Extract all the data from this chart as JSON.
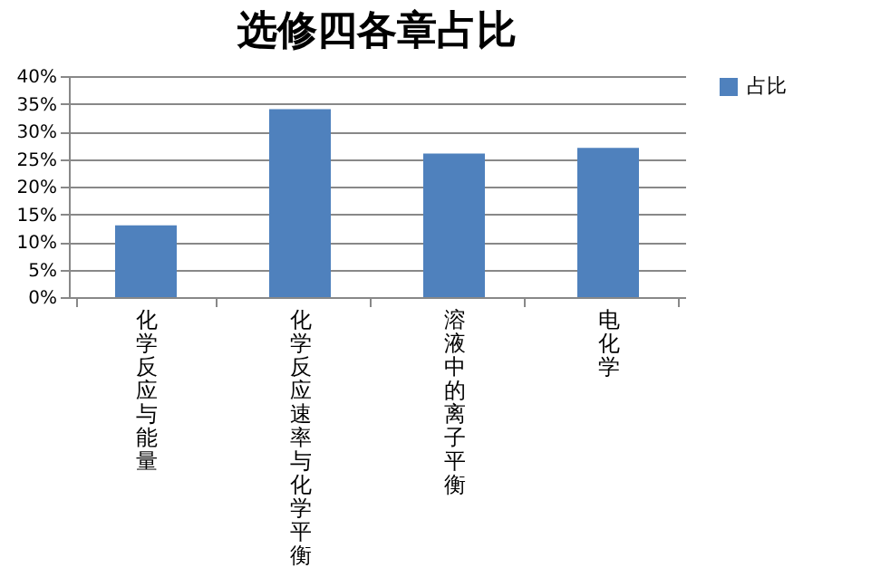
{
  "chart_data": {
    "type": "bar",
    "title": "选修四各章占比",
    "categories": [
      "化学反应与能量",
      "化学反应速率与化学平衡",
      "溶液中的离子平衡",
      "电化学"
    ],
    "series": [
      {
        "name": "占比",
        "color": "#4f81bd",
        "values": [
          13,
          34,
          26,
          27
        ]
      }
    ],
    "ylim": [
      0,
      40
    ],
    "yticks": [
      {
        "value": 0,
        "label": "0%"
      },
      {
        "value": 5,
        "label": "5%"
      },
      {
        "value": 10,
        "label": "10%"
      },
      {
        "value": 15,
        "label": "15%"
      },
      {
        "value": 20,
        "label": "20%"
      },
      {
        "value": 25,
        "label": "25%"
      },
      {
        "value": 30,
        "label": "30%"
      },
      {
        "value": 35,
        "label": "35%"
      },
      {
        "value": 40,
        "label": "40%"
      }
    ],
    "grid": "y",
    "legend": "right"
  }
}
